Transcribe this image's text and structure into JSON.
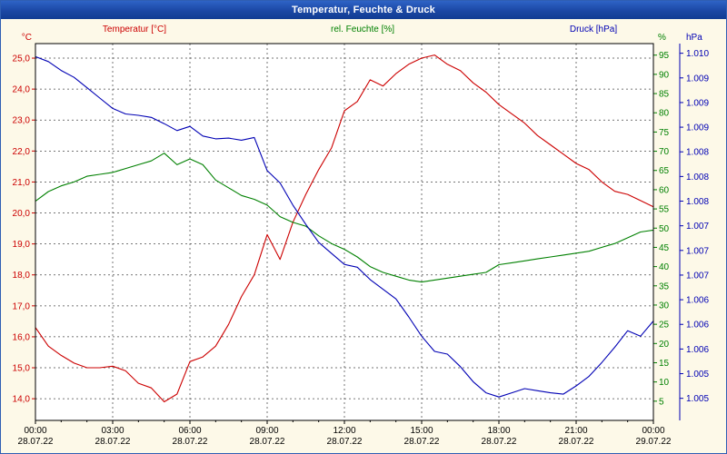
{
  "window": {
    "title": "Temperatur, Feuchte & Druck"
  },
  "header": {
    "temperature_label": "Temperatur [°C]",
    "humidity_label": "rel. Feuchte [%]",
    "pressure_label": "Druck [hPa]"
  },
  "colors": {
    "temperature": "#cc0000",
    "humidity": "#008000",
    "pressure": "#0000b4",
    "grid": "#4a4a4a",
    "window_bg": "#fdf9e8",
    "plot_bg": "#ffffff",
    "plot_border": "#000000",
    "time_text": "#000000",
    "titlebar_text": "#ffffff"
  },
  "chart_data": {
    "type": "line",
    "title": "Temperatur, Feuchte & Druck",
    "grid": true,
    "x_axis": {
      "label_times": [
        "00:00",
        "03:00",
        "06:00",
        "09:00",
        "12:00",
        "15:00",
        "18:00",
        "21:00",
        "00:00"
      ],
      "label_hours": [
        0,
        3,
        6,
        9,
        12,
        15,
        18,
        21,
        24
      ],
      "label_dates": [
        "28.07.22",
        "28.07.22",
        "28.07.22",
        "28.07.22",
        "28.07.22",
        "28.07.22",
        "28.07.22",
        "28.07.22",
        "29.07.22"
      ],
      "range_hours": [
        0,
        24
      ]
    },
    "y_axes": {
      "temperature": {
        "unit": "°C",
        "tick_labels": [
          "25,0",
          "24,0",
          "23,0",
          "22,0",
          "21,0",
          "20,0",
          "19,0",
          "18,0",
          "17,0",
          "16,0",
          "15,0",
          "14,0"
        ],
        "tick_values": [
          25,
          24,
          23,
          22,
          21,
          20,
          19,
          18,
          17,
          16,
          15,
          14
        ],
        "min": 13.3,
        "max": 25.47
      },
      "humidity": {
        "unit": "%",
        "tick_values": [
          95,
          90,
          85,
          80,
          75,
          70,
          65,
          60,
          55,
          50,
          45,
          40,
          35,
          30,
          25,
          20,
          15,
          10,
          5
        ],
        "min": 0,
        "max": 98
      },
      "pressure": {
        "unit": "hPa",
        "tick_labels": [
          "1.010",
          "1.009",
          "1.009",
          "1.009",
          "1.008",
          "1.008",
          "1.008",
          "1.007",
          "1.007",
          "1.007",
          "1.006",
          "1.006",
          "1.006",
          "1.005",
          "1.005"
        ],
        "tick_value_top": 1010,
        "tick_value_bottom": 1005,
        "min": 1004.68,
        "max": 1010.14
      }
    },
    "x_hours": [
      0,
      0.5,
      1,
      1.5,
      2,
      2.5,
      3,
      3.5,
      4,
      4.5,
      5,
      5.5,
      6,
      6.5,
      7,
      7.5,
      8,
      8.5,
      9,
      9.5,
      10,
      10.5,
      11,
      11.5,
      12,
      12.5,
      13,
      13.5,
      14,
      14.5,
      15,
      15.5,
      16,
      16.5,
      17,
      17.5,
      18,
      18.5,
      19,
      19.5,
      20,
      20.5,
      21,
      21.5,
      22,
      22.5,
      23,
      23.5,
      24
    ],
    "series": [
      {
        "name": "Temperatur [°C]",
        "axis": "temperature",
        "color": "#cc0000",
        "values": [
          16.3,
          15.7,
          15.4,
          15.15,
          15.0,
          15.0,
          15.05,
          14.9,
          14.5,
          14.35,
          13.9,
          14.15,
          15.2,
          15.35,
          15.7,
          16.4,
          17.3,
          18.0,
          19.3,
          18.5,
          19.7,
          20.6,
          21.4,
          22.1,
          23.3,
          23.6,
          24.3,
          24.1,
          24.5,
          24.8,
          25.0,
          25.1,
          24.8,
          24.6,
          24.2,
          23.9,
          23.5,
          23.2,
          22.9,
          22.5,
          22.2,
          21.9,
          21.6,
          21.4,
          21.0,
          20.7,
          20.6,
          20.4,
          20.2
        ]
      },
      {
        "name": "rel. Feuchte [%]",
        "axis": "humidity",
        "color": "#008000",
        "values": [
          57,
          59.5,
          61,
          62,
          63.5,
          64,
          64.5,
          65.5,
          66.5,
          67.5,
          69.5,
          66.5,
          68,
          66.5,
          62.5,
          60.5,
          58.5,
          57.5,
          56,
          53,
          51.5,
          50.5,
          48,
          46,
          44.5,
          42.5,
          40,
          38.5,
          37.5,
          36.5,
          36,
          36.5,
          37,
          37.5,
          38,
          38.5,
          40.5,
          41,
          41.5,
          42,
          42.5,
          43,
          43.5,
          44,
          45,
          46,
          47.5,
          49,
          49.5
        ]
      },
      {
        "name": "Druck [hPa]",
        "axis": "pressure",
        "color": "#0000b4",
        "values": [
          1009.95,
          1009.88,
          1009.75,
          1009.65,
          1009.5,
          1009.35,
          1009.2,
          1009.12,
          1009.1,
          1009.07,
          1008.98,
          1008.88,
          1008.94,
          1008.8,
          1008.76,
          1008.77,
          1008.74,
          1008.78,
          1008.3,
          1008.12,
          1007.8,
          1007.52,
          1007.26,
          1007.1,
          1006.94,
          1006.9,
          1006.72,
          1006.58,
          1006.44,
          1006.18,
          1005.9,
          1005.68,
          1005.64,
          1005.46,
          1005.24,
          1005.08,
          1005.02,
          1005.08,
          1005.14,
          1005.11,
          1005.08,
          1005.06,
          1005.18,
          1005.32,
          1005.52,
          1005.74,
          1005.98,
          1005.9,
          1006.12
        ]
      }
    ]
  }
}
